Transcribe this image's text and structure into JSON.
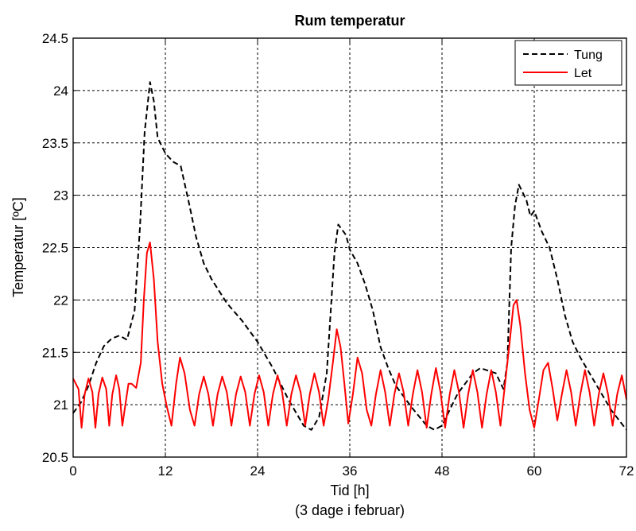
{
  "chart_data": {
    "type": "line",
    "title": "Rum temperatur",
    "xlabel": "Tid [h]",
    "xlabel_sub": "(3 dage i februar)",
    "ylabel": "Temperatur [ºC]",
    "xlim": [
      0,
      72
    ],
    "ylim": [
      20.5,
      24.5
    ],
    "xticks": [
      0,
      12,
      24,
      36,
      48,
      60,
      72
    ],
    "yticks": [
      20.5,
      21,
      21.5,
      22,
      22.5,
      23,
      23.5,
      24,
      24.5
    ],
    "ytick_labels": [
      "20.5",
      "21",
      "21.5",
      "22",
      "22.5",
      "23",
      "23.5",
      "24",
      "24.5"
    ],
    "grid": true,
    "legend_position": "top-right",
    "series": [
      {
        "name": "Tung",
        "color": "#000000",
        "style": "dashed",
        "points": [
          [
            0,
            20.92
          ],
          [
            1,
            21.02
          ],
          [
            2,
            21.18
          ],
          [
            3,
            21.4
          ],
          [
            4,
            21.56
          ],
          [
            5,
            21.63
          ],
          [
            6,
            21.66
          ],
          [
            7,
            21.62
          ],
          [
            8,
            21.9
          ],
          [
            8.7,
            22.7
          ],
          [
            9.3,
            23.6
          ],
          [
            10,
            24.08
          ],
          [
            10.5,
            23.9
          ],
          [
            11,
            23.55
          ],
          [
            12,
            23.4
          ],
          [
            13,
            23.32
          ],
          [
            14,
            23.28
          ],
          [
            15,
            22.95
          ],
          [
            16,
            22.6
          ],
          [
            17,
            22.35
          ],
          [
            18,
            22.2
          ],
          [
            20,
            21.97
          ],
          [
            22,
            21.8
          ],
          [
            24,
            21.6
          ],
          [
            26,
            21.35
          ],
          [
            28,
            21.05
          ],
          [
            30,
            20.8
          ],
          [
            31,
            20.76
          ],
          [
            32,
            20.88
          ],
          [
            33,
            21.3
          ],
          [
            34,
            22.45
          ],
          [
            34.5,
            22.72
          ],
          [
            35.5,
            22.62
          ],
          [
            36,
            22.48
          ],
          [
            37,
            22.35
          ],
          [
            38,
            22.15
          ],
          [
            39,
            21.9
          ],
          [
            40,
            21.55
          ],
          [
            41,
            21.35
          ],
          [
            42,
            21.18
          ],
          [
            44,
            20.98
          ],
          [
            46,
            20.8
          ],
          [
            47,
            20.76
          ],
          [
            48,
            20.8
          ],
          [
            50,
            21.1
          ],
          [
            52,
            21.3
          ],
          [
            53,
            21.35
          ],
          [
            55,
            21.3
          ],
          [
            56,
            21.15
          ],
          [
            56.5,
            21.4
          ],
          [
            57,
            22.5
          ],
          [
            57.5,
            22.9
          ],
          [
            58,
            23.1
          ],
          [
            59,
            22.95
          ],
          [
            59.5,
            22.8
          ],
          [
            60,
            22.85
          ],
          [
            61,
            22.65
          ],
          [
            62,
            22.5
          ],
          [
            63,
            22.2
          ],
          [
            64,
            21.85
          ],
          [
            65,
            21.6
          ],
          [
            66,
            21.45
          ],
          [
            68,
            21.2
          ],
          [
            70,
            20.95
          ],
          [
            72,
            20.76
          ]
        ]
      },
      {
        "name": "Let",
        "color": "#ff0000",
        "style": "solid",
        "points": [
          [
            0,
            21.25
          ],
          [
            0.7,
            21.15
          ],
          [
            1.1,
            20.78
          ],
          [
            1.5,
            21.1
          ],
          [
            2,
            21.25
          ],
          [
            2.5,
            21.12
          ],
          [
            2.9,
            20.78
          ],
          [
            3.3,
            21.1
          ],
          [
            3.8,
            21.26
          ],
          [
            4.3,
            21.15
          ],
          [
            4.7,
            20.8
          ],
          [
            5.1,
            21.1
          ],
          [
            5.6,
            21.28
          ],
          [
            6,
            21.15
          ],
          [
            6.4,
            20.8
          ],
          [
            6.8,
            21.0
          ],
          [
            7.2,
            21.2
          ],
          [
            7.6,
            21.2
          ],
          [
            8.2,
            21.16
          ],
          [
            8.8,
            21.4
          ],
          [
            9.2,
            22.0
          ],
          [
            9.6,
            22.45
          ],
          [
            10,
            22.55
          ],
          [
            10.5,
            22.2
          ],
          [
            11,
            21.6
          ],
          [
            11.6,
            21.2
          ],
          [
            12.2,
            20.98
          ],
          [
            12.8,
            20.8
          ],
          [
            13.4,
            21.2
          ],
          [
            13.9,
            21.45
          ],
          [
            14.5,
            21.3
          ],
          [
            15.2,
            20.95
          ],
          [
            15.8,
            20.8
          ],
          [
            16.4,
            21.1
          ],
          [
            17,
            21.27
          ],
          [
            17.6,
            21.1
          ],
          [
            18.2,
            20.8
          ],
          [
            18.8,
            21.1
          ],
          [
            19.4,
            21.27
          ],
          [
            20,
            21.12
          ],
          [
            20.6,
            20.8
          ],
          [
            21.2,
            21.1
          ],
          [
            21.8,
            21.27
          ],
          [
            22.4,
            21.12
          ],
          [
            23,
            20.8
          ],
          [
            23.6,
            21.1
          ],
          [
            24.2,
            21.28
          ],
          [
            24.8,
            21.12
          ],
          [
            25.4,
            20.8
          ],
          [
            26,
            21.1
          ],
          [
            26.6,
            21.28
          ],
          [
            27.2,
            21.12
          ],
          [
            27.8,
            20.8
          ],
          [
            28.4,
            21.1
          ],
          [
            29,
            21.28
          ],
          [
            29.6,
            21.12
          ],
          [
            30.2,
            20.8
          ],
          [
            30.8,
            21.1
          ],
          [
            31.4,
            21.3
          ],
          [
            32,
            21.12
          ],
          [
            32.6,
            20.8
          ],
          [
            33.2,
            21.05
          ],
          [
            33.8,
            21.4
          ],
          [
            34.3,
            21.72
          ],
          [
            34.8,
            21.55
          ],
          [
            35.3,
            21.2
          ],
          [
            35.8,
            20.82
          ],
          [
            36.4,
            21.1
          ],
          [
            37,
            21.45
          ],
          [
            37.6,
            21.3
          ],
          [
            38.2,
            20.95
          ],
          [
            38.8,
            20.8
          ],
          [
            39.4,
            21.1
          ],
          [
            40,
            21.33
          ],
          [
            40.6,
            21.12
          ],
          [
            41.2,
            20.8
          ],
          [
            41.8,
            21.1
          ],
          [
            42.4,
            21.3
          ],
          [
            43,
            21.12
          ],
          [
            43.6,
            20.8
          ],
          [
            44.2,
            21.1
          ],
          [
            44.8,
            21.33
          ],
          [
            45.4,
            21.12
          ],
          [
            46,
            20.78
          ],
          [
            46.6,
            21.1
          ],
          [
            47.2,
            21.35
          ],
          [
            47.8,
            21.12
          ],
          [
            48.4,
            20.78
          ],
          [
            49,
            21.1
          ],
          [
            49.6,
            21.33
          ],
          [
            50.2,
            21.12
          ],
          [
            50.8,
            20.78
          ],
          [
            51.4,
            21.1
          ],
          [
            52,
            21.33
          ],
          [
            52.6,
            21.12
          ],
          [
            53.2,
            20.78
          ],
          [
            53.8,
            21.1
          ],
          [
            54.4,
            21.33
          ],
          [
            55,
            21.12
          ],
          [
            55.6,
            20.8
          ],
          [
            56.2,
            21.2
          ],
          [
            56.8,
            21.6
          ],
          [
            57.3,
            21.95
          ],
          [
            57.7,
            22.0
          ],
          [
            58.2,
            21.75
          ],
          [
            58.8,
            21.3
          ],
          [
            59.4,
            20.95
          ],
          [
            60,
            20.78
          ],
          [
            60.6,
            21.05
          ],
          [
            61.2,
            21.33
          ],
          [
            61.8,
            21.4
          ],
          [
            62.4,
            21.15
          ],
          [
            63,
            20.85
          ],
          [
            63.6,
            21.1
          ],
          [
            64.2,
            21.33
          ],
          [
            64.8,
            21.12
          ],
          [
            65.4,
            20.8
          ],
          [
            66,
            21.1
          ],
          [
            66.6,
            21.33
          ],
          [
            67.2,
            21.12
          ],
          [
            67.8,
            20.8
          ],
          [
            68.4,
            21.1
          ],
          [
            69,
            21.3
          ],
          [
            69.6,
            21.1
          ],
          [
            70.2,
            20.8
          ],
          [
            70.8,
            21.1
          ],
          [
            71.4,
            21.28
          ],
          [
            72,
            21.05
          ]
        ]
      }
    ]
  }
}
